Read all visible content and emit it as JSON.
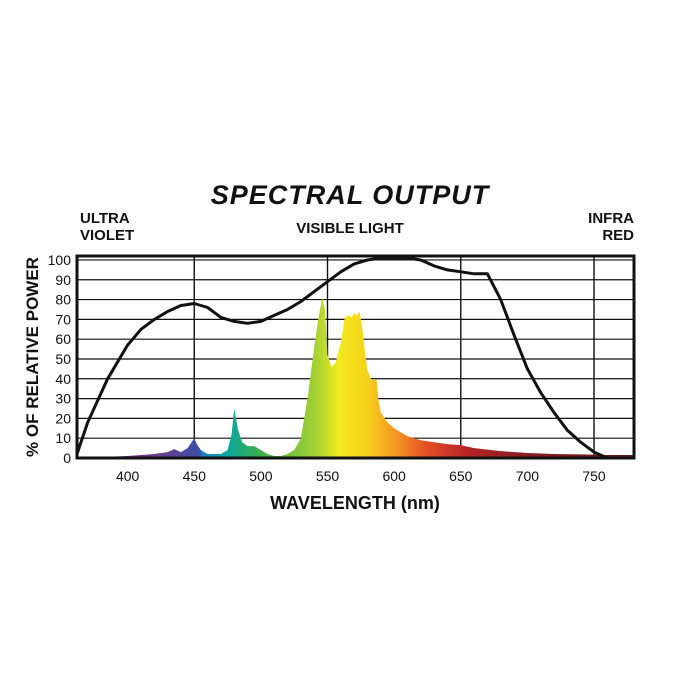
{
  "chart_data": {
    "type": "area",
    "title": "SPECTRAL OUTPUT",
    "xlabel": "WAVELENGTH (nm)",
    "ylabel": "% OF RELATIVE POWER",
    "region_labels": {
      "left_line1": "ULTRA",
      "left_line2": "VIOLET",
      "center": "VISIBLE LIGHT",
      "right_line1": "INFRA",
      "right_line2": "RED"
    },
    "xlim": [
      362,
      780
    ],
    "ylim": [
      0,
      102
    ],
    "x_ticks": [
      400,
      450,
      500,
      550,
      600,
      650,
      700,
      750
    ],
    "y_ticks": [
      0,
      10,
      20,
      30,
      40,
      50,
      60,
      70,
      80,
      90,
      100
    ],
    "vertical_gridlines": [
      450,
      550,
      650,
      750
    ],
    "grid": true,
    "series": [
      {
        "color": "#111111",
        "style": "line",
        "x": [
          362,
          370,
          385,
          400,
          410,
          420,
          430,
          440,
          450,
          460,
          470,
          480,
          490,
          500,
          510,
          520,
          530,
          540,
          550,
          560,
          570,
          580,
          590,
          600,
          610,
          620,
          630,
          640,
          650,
          660,
          670,
          680,
          690,
          700,
          710,
          720,
          730,
          740,
          750,
          760
        ],
        "y": [
          2,
          18,
          40,
          57,
          65,
          70,
          74,
          77,
          78,
          76,
          71,
          69,
          68,
          69,
          72,
          75,
          79,
          84,
          89,
          94,
          98,
          100,
          101,
          101,
          101,
          100,
          97,
          95,
          94,
          93,
          93,
          80,
          62,
          45,
          33,
          23,
          14,
          8,
          3,
          0
        ]
      },
      {
        "color": "spectrum",
        "style": "filled",
        "x": [
          362,
          380,
          400,
          420,
          430,
          435,
          440,
          445,
          448,
          450,
          452,
          455,
          460,
          470,
          475,
          478,
          480,
          483,
          486,
          490,
          495,
          500,
          505,
          510,
          515,
          520,
          525,
          530,
          535,
          540,
          543,
          546,
          548,
          550,
          553,
          556,
          560,
          563,
          566,
          568,
          570,
          572,
          574,
          576,
          578,
          580,
          582,
          583,
          585,
          587,
          588,
          590,
          595,
          600,
          605,
          610,
          620,
          630,
          640,
          650,
          660,
          680,
          700,
          720,
          740,
          760,
          780
        ],
        "y": [
          0,
          0.5,
          1,
          2,
          3,
          4.5,
          3,
          5,
          8,
          10,
          7,
          4,
          2,
          2,
          4,
          12,
          25,
          14,
          8,
          6,
          6,
          4,
          2,
          1,
          1,
          2,
          4,
          10,
          30,
          56,
          70,
          81,
          75,
          52,
          46,
          48,
          58,
          71,
          72,
          71,
          73,
          72,
          74,
          66,
          54,
          44,
          41,
          39,
          40,
          39,
          30,
          23,
          18,
          15,
          13,
          11,
          9,
          8,
          7,
          6.5,
          5,
          3.5,
          2.5,
          2,
          1.8,
          1.5,
          1.5
        ]
      }
    ]
  }
}
